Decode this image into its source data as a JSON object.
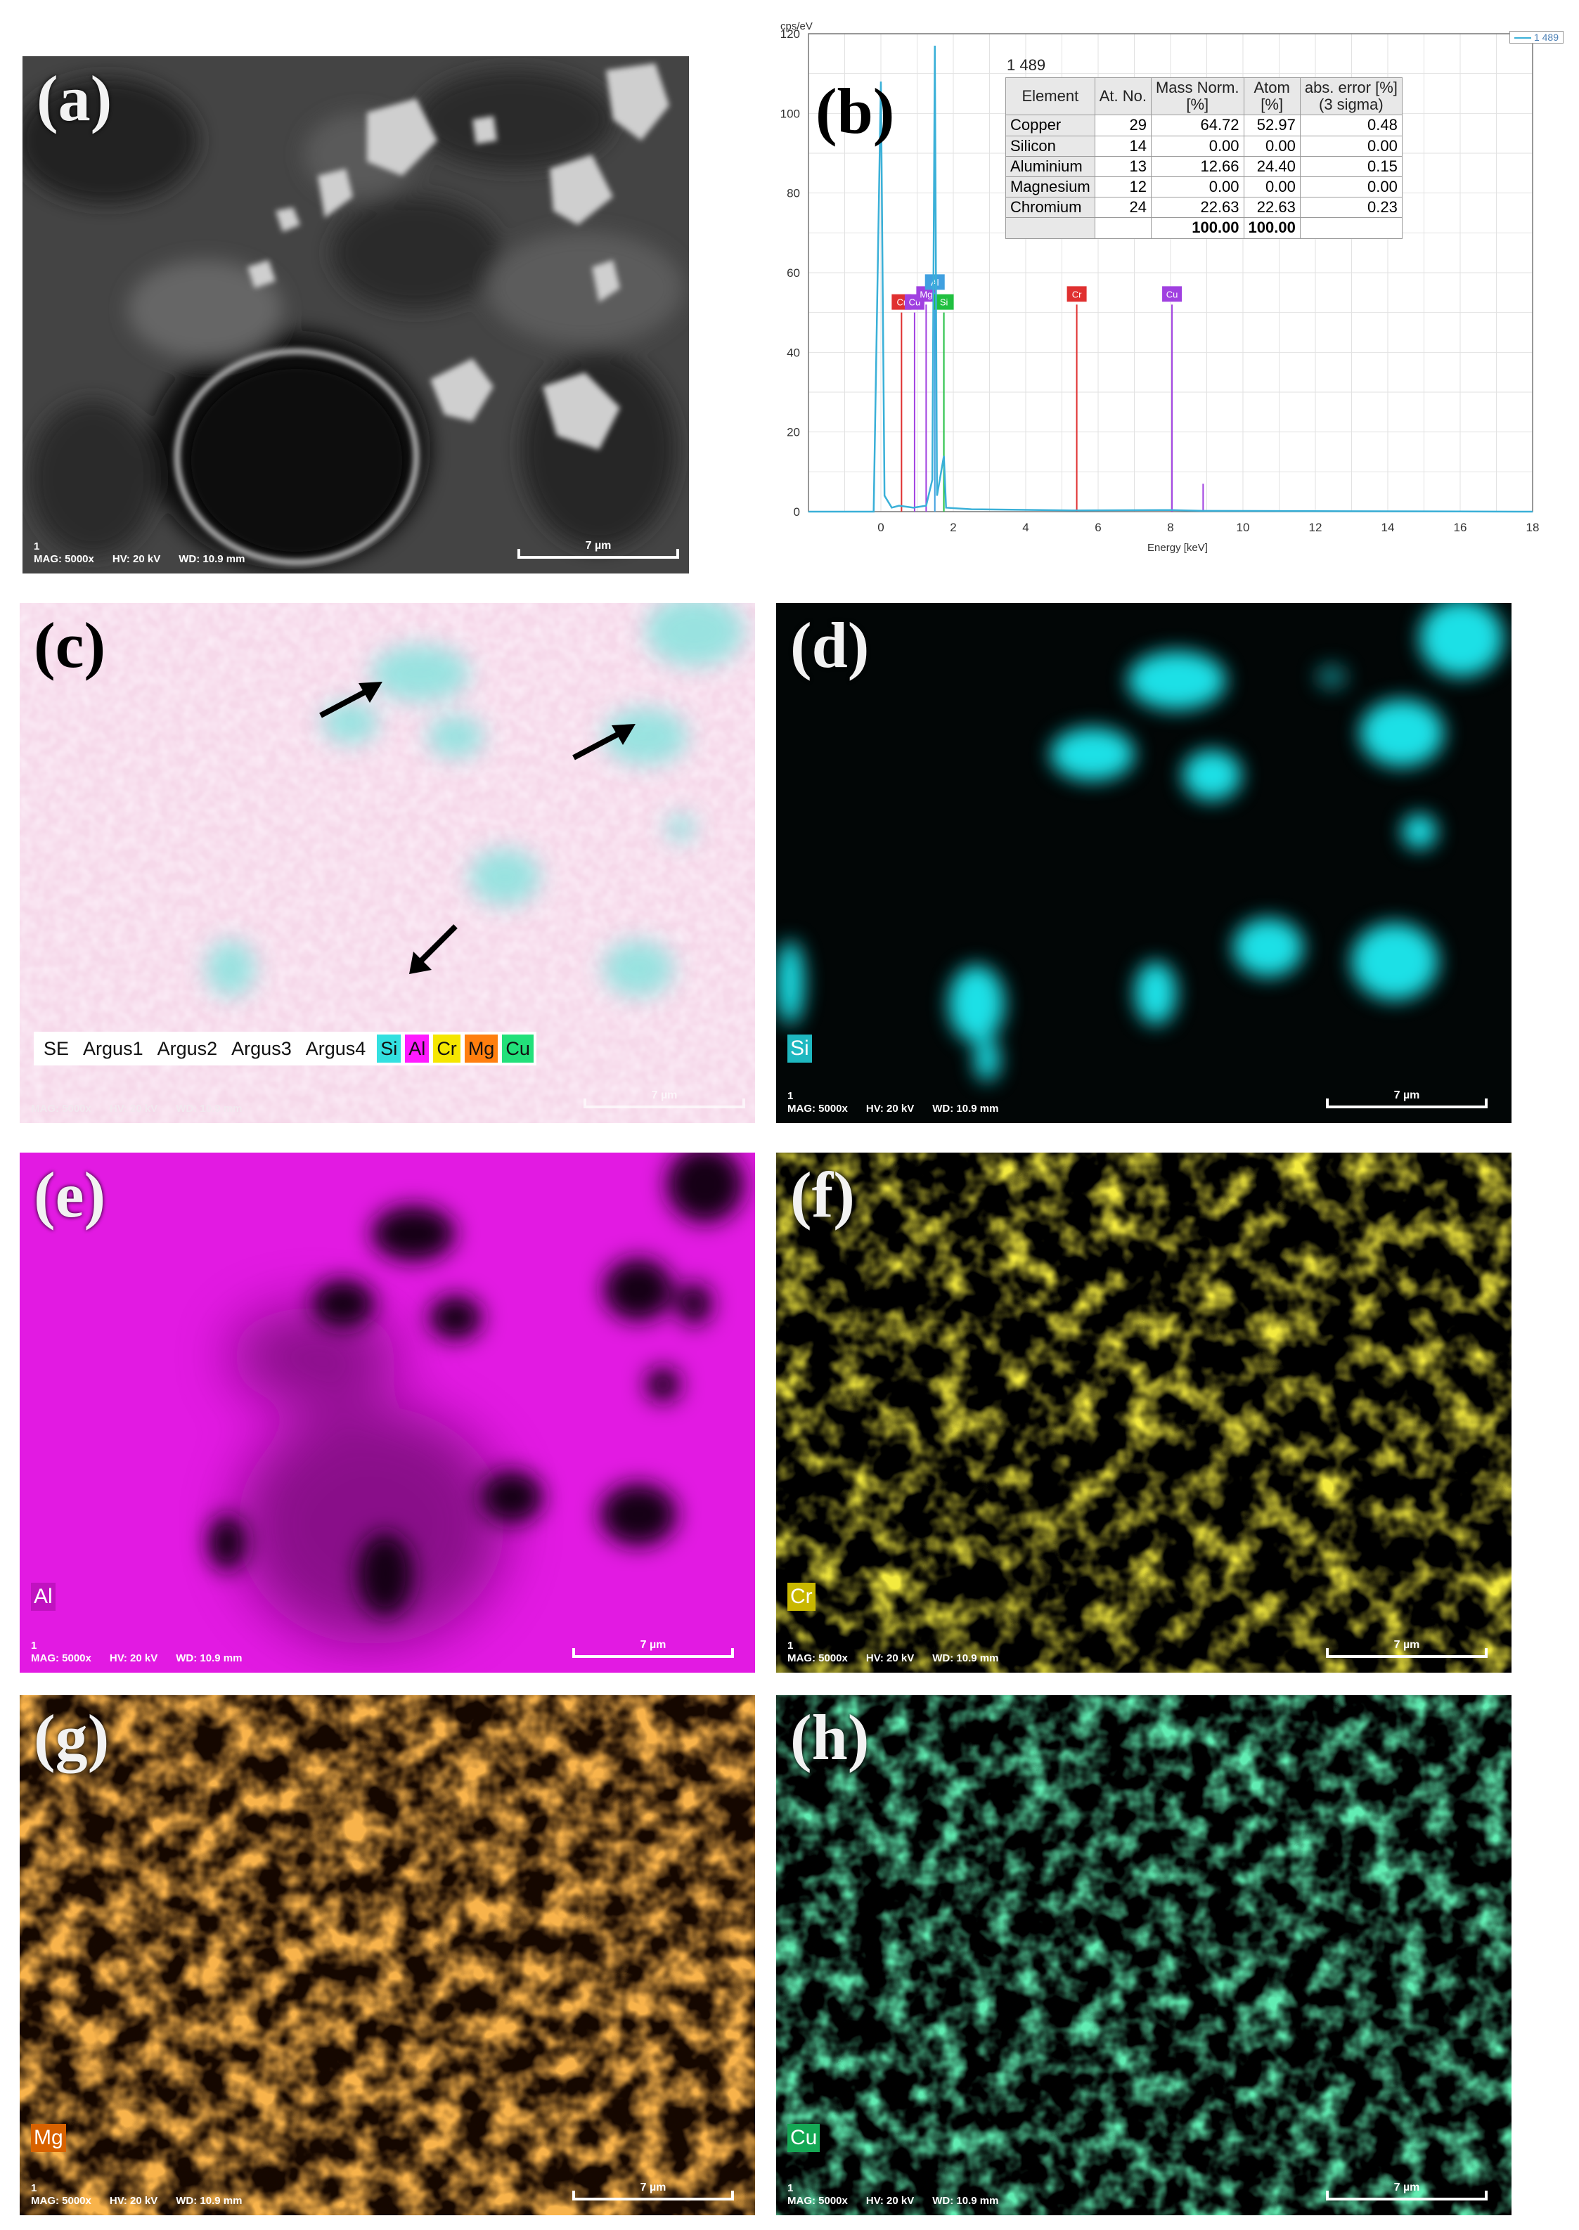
{
  "panels": {
    "a": {
      "label": "(a)",
      "info_line1": "1",
      "mag": "MAG: 5000x",
      "hv": "HV: 20 kV",
      "wd": "WD: 10.9 mm",
      "scale": "7 µm"
    },
    "b": {
      "label": "(b)"
    },
    "c": {
      "label": "(c)",
      "mag": "MAG: 5000x",
      "hv": "HV: 20 kV",
      "wd": "WD: 10.9 mm",
      "scale": "7 µm",
      "legend": [
        "SE",
        "Argus1",
        "Argus2",
        "Argus3",
        "Argus4"
      ],
      "legend_elements": [
        {
          "sym": "Si",
          "color": "#33e0e0"
        },
        {
          "sym": "Al",
          "color": "#ff1aff"
        },
        {
          "sym": "Cr",
          "color": "#f5e600"
        },
        {
          "sym": "Mg",
          "color": "#ff7f0f"
        },
        {
          "sym": "Cu",
          "color": "#22e07a"
        }
      ]
    },
    "d": {
      "label": "(d)",
      "element": "Si",
      "color": "#1ee0e6",
      "info_line1": "1",
      "mag": "MAG: 5000x",
      "hv": "HV: 20 kV",
      "wd": "WD: 10.9 mm",
      "scale": "7 µm"
    },
    "e": {
      "label": "(e)",
      "element": "Al",
      "color": "#e619e6",
      "info_line1": "1",
      "mag": "MAG: 5000x",
      "hv": "HV: 20 kV",
      "wd": "WD: 10.9 mm",
      "scale": "7 µm"
    },
    "f": {
      "label": "(f)",
      "element": "Cr",
      "color": "#e6d21a",
      "info_line1": "1",
      "mag": "MAG: 5000x",
      "hv": "HV: 20 kV",
      "wd": "WD: 10.9 mm",
      "scale": "7 µm"
    },
    "g": {
      "label": "(g)",
      "element": "Mg",
      "color": "#f07412",
      "info_line1": "1",
      "mag": "MAG: 5000x",
      "hv": "HV: 20 kV",
      "wd": "WD: 10.9 mm",
      "scale": "7 µm"
    },
    "h": {
      "label": "(h)",
      "element": "Cu",
      "color": "#1fd46e",
      "info_line1": "1",
      "mag": "MAG: 5000x",
      "hv": "HV: 20 kV",
      "wd": "WD: 10.9 mm",
      "scale": "7 µm"
    }
  },
  "spectrum_table": {
    "title": "1 489",
    "headers": [
      "Element",
      "At. No.",
      "Mass Norm.\n[%]",
      "Atom\n[%]",
      "abs. error [%]\n(3 sigma)"
    ],
    "rows": [
      [
        "Copper",
        "29",
        "64.72",
        "52.97",
        "0.48"
      ],
      [
        "Silicon",
        "14",
        "0.00",
        "0.00",
        "0.00"
      ],
      [
        "Aluminium",
        "13",
        "12.66",
        "24.40",
        "0.15"
      ],
      [
        "Magnesium",
        "12",
        "0.00",
        "0.00",
        "0.00"
      ],
      [
        "Chromium",
        "24",
        "22.63",
        "22.63",
        "0.23"
      ]
    ],
    "totals": [
      "",
      "",
      "100.00",
      "100.00",
      ""
    ]
  },
  "chart_data": {
    "type": "line",
    "title": "",
    "xlabel": "Energy [keV]",
    "ylabel": "cps/eV",
    "xlim": [
      -2,
      18
    ],
    "ylim": [
      0,
      120
    ],
    "xticks": [
      0,
      2,
      4,
      6,
      8,
      10,
      12,
      14,
      16,
      18
    ],
    "yticks": [
      0,
      20,
      40,
      60,
      80,
      100,
      120
    ],
    "legend": "1 489",
    "legend_position": "top-right",
    "grid": true,
    "series": [
      {
        "name": "1 489",
        "color": "#3ab0d8",
        "x": [
          -2,
          -0.2,
          0.0,
          0.1,
          0.3,
          0.5,
          0.9,
          1.25,
          1.42,
          1.49,
          1.55,
          1.74,
          1.8,
          2.5,
          5.4,
          8.0,
          8.9,
          18
        ],
        "y": [
          0,
          0,
          108,
          4,
          1,
          1.5,
          1,
          1.5,
          8,
          117,
          4,
          14,
          1,
          0.6,
          0.3,
          0.4,
          0.2,
          0
        ]
      }
    ],
    "peak_markers": [
      {
        "label": "Cr",
        "x": 0.57,
        "y": 50,
        "color": "#e03030"
      },
      {
        "label": "Cu",
        "x": 0.93,
        "y": 50,
        "color": "#a040e0"
      },
      {
        "label": "Mg",
        "x": 1.25,
        "y": 52,
        "color": "#a040e0"
      },
      {
        "label": "Al",
        "x": 1.49,
        "y": 55,
        "color": "#40a0e0"
      },
      {
        "label": "Si",
        "x": 1.74,
        "y": 50,
        "color": "#20c040"
      },
      {
        "label": "Cr",
        "x": 5.41,
        "y": 52,
        "color": "#e03030"
      },
      {
        "label": "Cu",
        "x": 8.04,
        "y": 52,
        "color": "#a040e0"
      },
      {
        "label": "Cu",
        "x": 8.9,
        "y": 7,
        "color": "#a040e0"
      }
    ]
  }
}
